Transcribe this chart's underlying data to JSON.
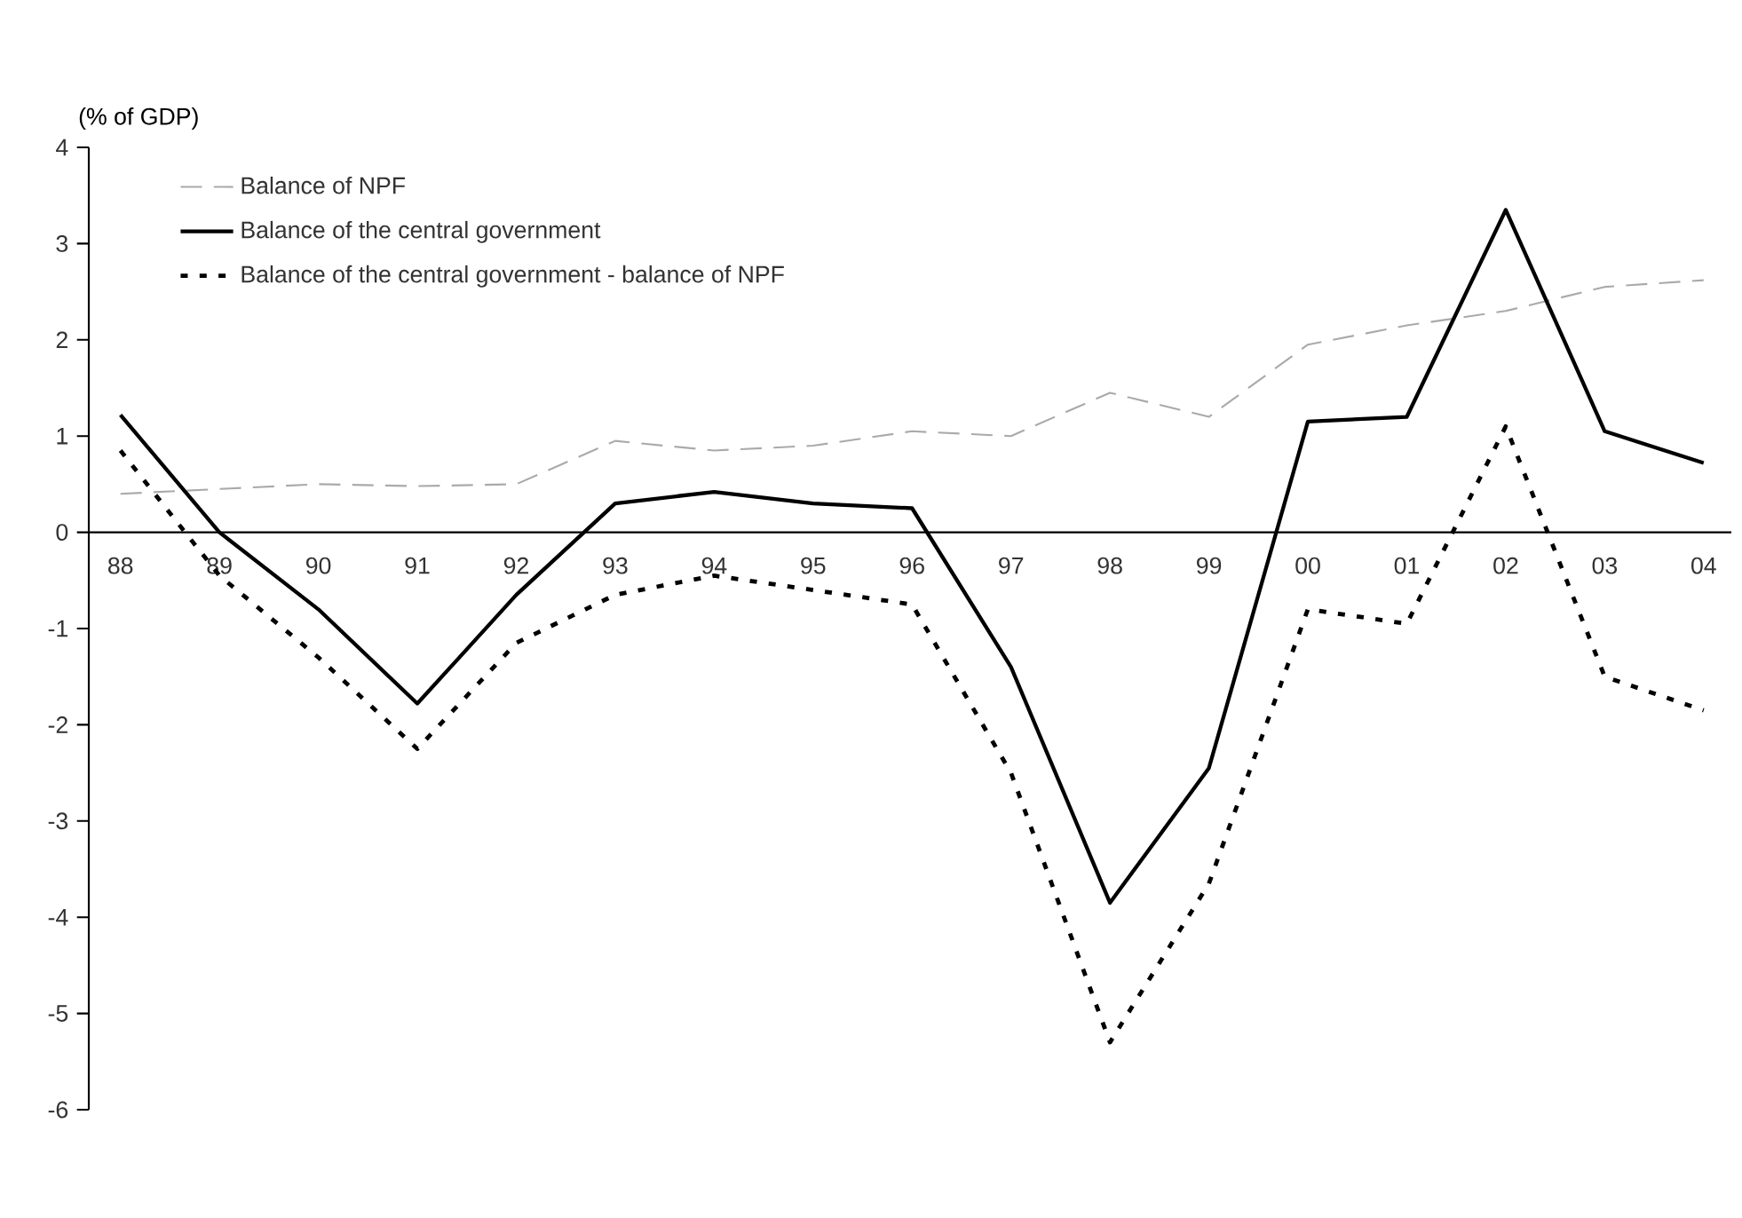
{
  "chart_data": {
    "type": "line",
    "ylabel": "(% of GDP)",
    "categories": [
      "88",
      "89",
      "90",
      "91",
      "92",
      "93",
      "94",
      "95",
      "96",
      "97",
      "98",
      "99",
      "00",
      "01",
      "02",
      "03",
      "04"
    ],
    "series": [
      {
        "name": "Balance of NPF",
        "color": "#aaaaaa",
        "line_style": "dashed",
        "values": [
          0.4,
          0.45,
          0.5,
          0.48,
          0.5,
          0.95,
          0.85,
          0.9,
          1.05,
          1.0,
          1.45,
          1.2,
          1.95,
          2.15,
          2.3,
          2.55,
          2.62
        ]
      },
      {
        "name": "Balance of the central government",
        "color": "#000000",
        "line_style": "solid",
        "values": [
          1.22,
          0.0,
          -0.8,
          -1.78,
          -0.65,
          0.3,
          0.42,
          0.3,
          0.25,
          -1.4,
          -3.85,
          -2.45,
          1.15,
          1.2,
          3.35,
          1.05,
          0.72
        ]
      },
      {
        "name": "Balance of the central government - balance of NPF",
        "color": "#000000",
        "line_style": "dotted",
        "values": [
          0.85,
          -0.45,
          -1.3,
          -2.25,
          -1.15,
          -0.65,
          -0.45,
          -0.6,
          -0.75,
          -2.5,
          -5.3,
          -3.65,
          -0.8,
          -0.95,
          1.1,
          -1.5,
          -1.85
        ]
      }
    ],
    "ylim": [
      -6,
      4
    ],
    "yticks": [
      -6,
      -5,
      -4,
      -3,
      -2,
      -1,
      0,
      1,
      2,
      3,
      4
    ],
    "grid": false,
    "legend": "top left"
  }
}
